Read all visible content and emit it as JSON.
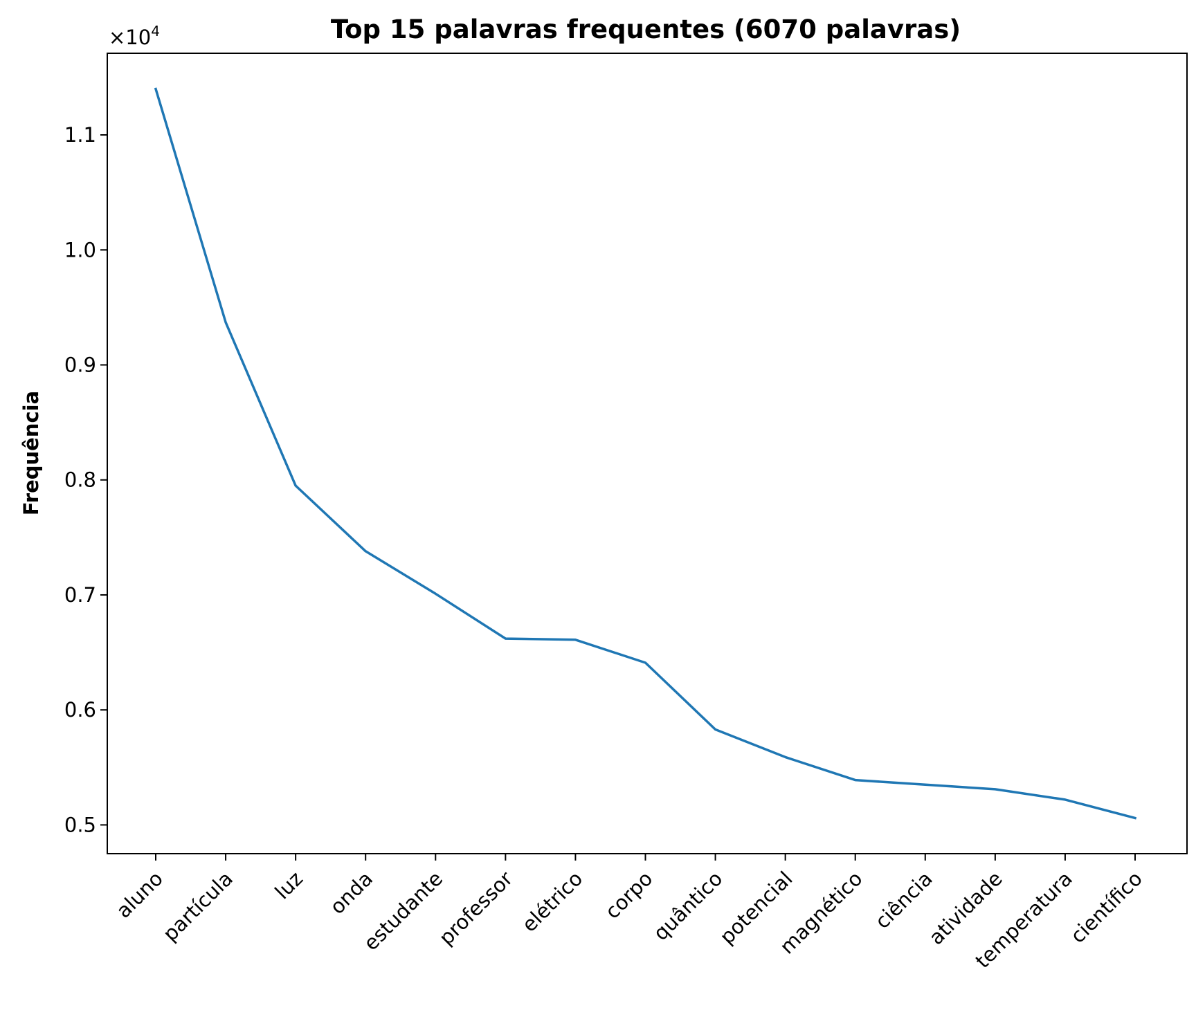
{
  "chart_data": {
    "type": "line",
    "title": "Top 15 palavras frequentes (6070 palavras)",
    "xlabel": "",
    "ylabel": "Frequência",
    "y_scale_label": "×10",
    "y_scale_exponent": "4",
    "categories": [
      "aluno",
      "partícula",
      "luz",
      "onda",
      "estudante",
      "professor",
      "elétrico",
      "corpo",
      "quântico",
      "potencial",
      "magnético",
      "ciência",
      "atividade",
      "temperatura",
      "científico"
    ],
    "values": [
      11400,
      9370,
      7950,
      7380,
      7010,
      6620,
      6610,
      6410,
      5830,
      5590,
      5390,
      5350,
      5310,
      5220,
      5060
    ],
    "y_ticks": [
      {
        "value": 5000,
        "label": "0.5"
      },
      {
        "value": 6000,
        "label": "0.6"
      },
      {
        "value": 7000,
        "label": "0.7"
      },
      {
        "value": 8000,
        "label": "0.8"
      },
      {
        "value": 9000,
        "label": "0.9"
      },
      {
        "value": 10000,
        "label": "1.0"
      },
      {
        "value": 11000,
        "label": "1.1"
      }
    ],
    "ylim": [
      4750,
      11710
    ],
    "line_color": "#1f77b4",
    "grid": false,
    "legend": "none"
  }
}
